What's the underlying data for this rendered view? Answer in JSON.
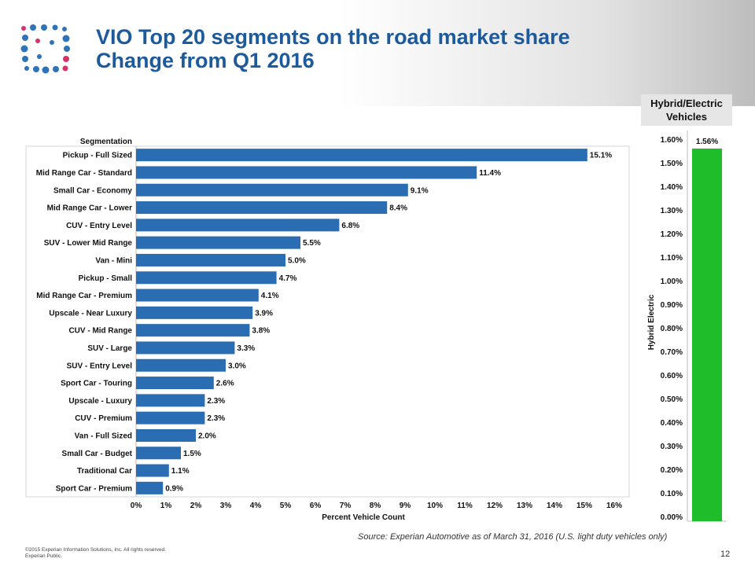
{
  "header": {
    "title_line1": "VIO Top 20 segments on the road market share",
    "title_line2": "Change from Q1 2016"
  },
  "hybrid_badge": {
    "line1": "Hybrid/Electric",
    "line2": "Vehicles"
  },
  "colors": {
    "title": "#1d5a9c",
    "bar": "#2a6db2",
    "hybrid_bar": "#1fbd2a",
    "logo_blue": "#2e73b8",
    "logo_pink": "#d6336c"
  },
  "chart_data": [
    {
      "type": "bar",
      "orientation": "horizontal",
      "row_header": "Segmentation",
      "xlabel": "Percent Vehicle Count",
      "xlim": [
        0,
        16
      ],
      "x_ticks": [
        "0%",
        "1%",
        "2%",
        "3%",
        "4%",
        "5%",
        "6%",
        "7%",
        "8%",
        "9%",
        "10%",
        "11%",
        "12%",
        "13%",
        "14%",
        "15%",
        "16%"
      ],
      "categories": [
        "Pickup - Full Sized",
        "Mid Range Car - Standard",
        "Small Car - Economy",
        "Mid Range Car - Lower",
        "CUV - Entry Level",
        "SUV - Lower Mid Range",
        "Van - Mini",
        "Pickup - Small",
        "Mid Range Car - Premium",
        "Upscale - Near Luxury",
        "CUV - Mid Range",
        "SUV - Large",
        "SUV - Entry Level",
        "Sport Car - Touring",
        "Upscale - Luxury",
        "CUV - Premium",
        "Van - Full Sized",
        "Small Car - Budget",
        "Traditional Car",
        "Sport Car - Premium"
      ],
      "values": [
        15.1,
        11.4,
        9.1,
        8.4,
        6.8,
        5.5,
        5.0,
        4.7,
        4.1,
        3.9,
        3.8,
        3.3,
        3.0,
        2.6,
        2.3,
        2.3,
        2.0,
        1.5,
        1.1,
        0.9
      ],
      "data_labels": [
        "15.1%",
        "11.4%",
        "9.1%",
        "8.4%",
        "6.8%",
        "5.5%",
        "5.0%",
        "4.7%",
        "4.1%",
        "3.9%",
        "3.8%",
        "3.3%",
        "3.0%",
        "2.6%",
        "2.3%",
        "2.3%",
        "2.0%",
        "1.5%",
        "1.1%",
        "0.9%"
      ],
      "grid": false
    },
    {
      "type": "bar",
      "orientation": "vertical",
      "ylabel": "Hybrid Electric",
      "ylim": [
        0,
        1.6
      ],
      "y_ticks": [
        "0.00%",
        "0.10%",
        "0.20%",
        "0.30%",
        "0.40%",
        "0.50%",
        "0.60%",
        "0.70%",
        "0.80%",
        "0.90%",
        "1.00%",
        "1.10%",
        "1.20%",
        "1.30%",
        "1.40%",
        "1.50%",
        "1.60%"
      ],
      "values": [
        1.56
      ],
      "data_labels": [
        "1.56%"
      ],
      "grid": false
    }
  ],
  "source": "Source: Experian Automotive as of March 31, 2016  (U.S. light duty vehicles only)",
  "footer": {
    "copyright": "©2015  Experian Information Solutions, Inc. All rights reserved.",
    "classification": "Experian Public."
  },
  "page_number": "12"
}
